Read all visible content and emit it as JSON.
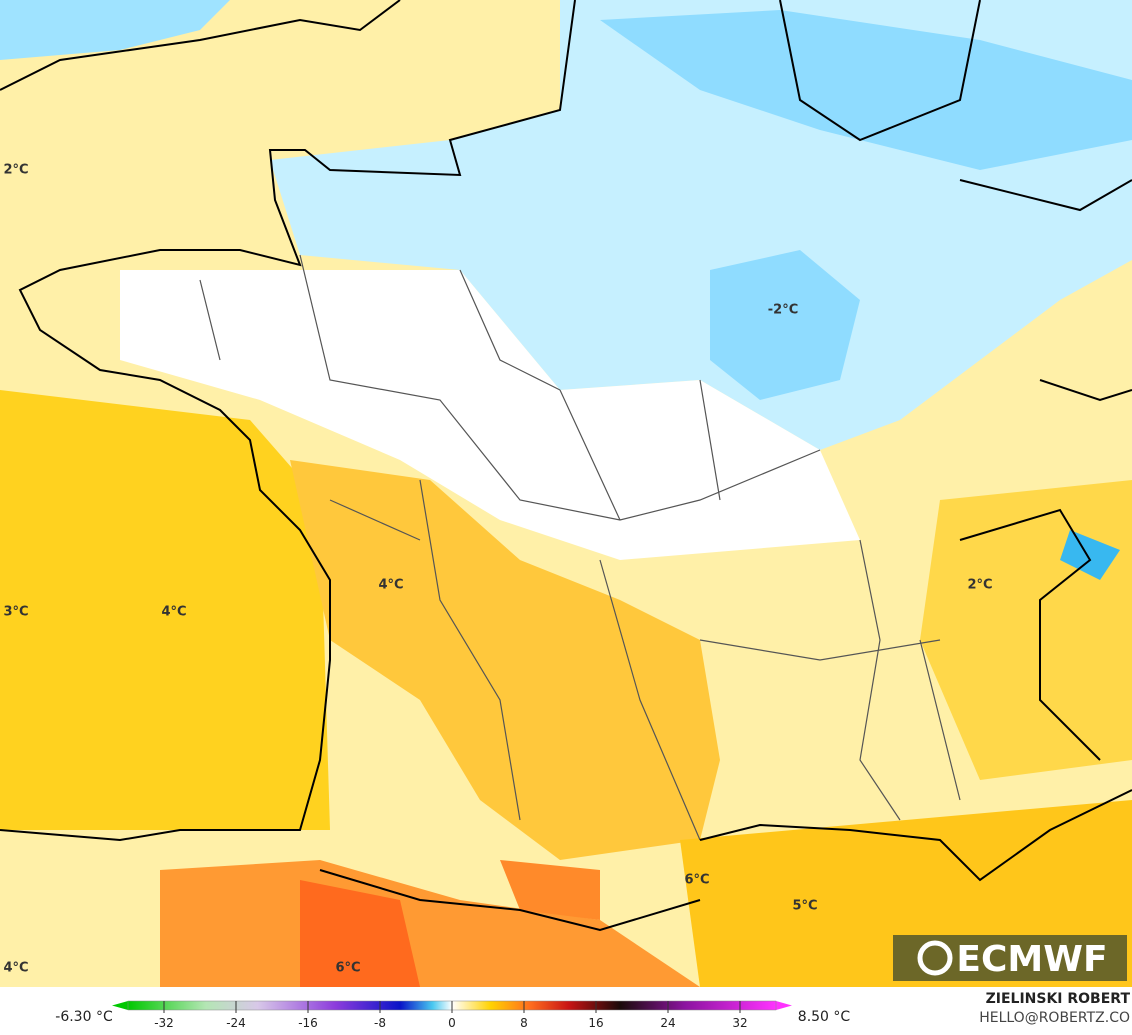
{
  "map": {
    "labels": [
      "2°C",
      "-2°C",
      "3°C",
      "4°C",
      "4°C",
      "2°C",
      "6°C",
      "5°C",
      "6°C",
      "4°C"
    ],
    "logo": "ECMWF"
  },
  "colorbar": {
    "min_label": "-6.30 °C",
    "max_label": "8.50 °C",
    "range": [
      -36,
      36
    ],
    "ticks": [
      -32,
      -24,
      -16,
      -8,
      0,
      8,
      16,
      24,
      32
    ]
  },
  "credit": {
    "name": "ZIELINSKI ROBERT",
    "contact": "HELLO@ROBERTZ.CO"
  }
}
